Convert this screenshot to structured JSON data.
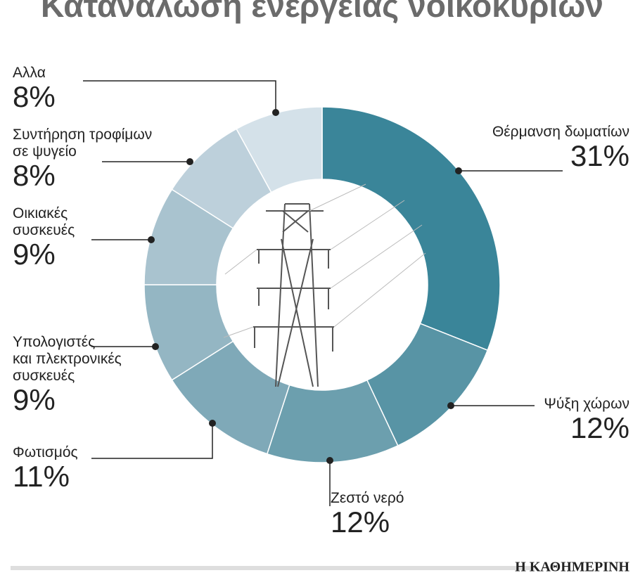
{
  "chart_data": {
    "type": "donut",
    "title": "Κατανάλωση ενέργειας νοικοκυριών",
    "categories": [
      "Θέρμανση δωματίων",
      "Ψύξη χώρων",
      "Ζεστό νερό",
      "Φωτισμός",
      "Υπολογιστές\nκαι πλεκτρονικές\nσυσκευές",
      "Οικιακές\nσυσκευές",
      "Συντήρηση τροφίμων\nσε ψυγείο",
      "Αλλα"
    ],
    "values": [
      31,
      12,
      12,
      11,
      9,
      9,
      8,
      8
    ],
    "value_labels": [
      "31%",
      "12%",
      "12%",
      "11%",
      "9%",
      "9%",
      "8%",
      "8%"
    ],
    "colors": [
      "#3a8599",
      "#5894a5",
      "#6c9fae",
      "#7fa9b8",
      "#94b6c3",
      "#a9c3cf",
      "#bdd0db",
      "#d4e1e9"
    ],
    "source": "Η ΚΑΘΗΜΕΡΙΝΗ"
  }
}
